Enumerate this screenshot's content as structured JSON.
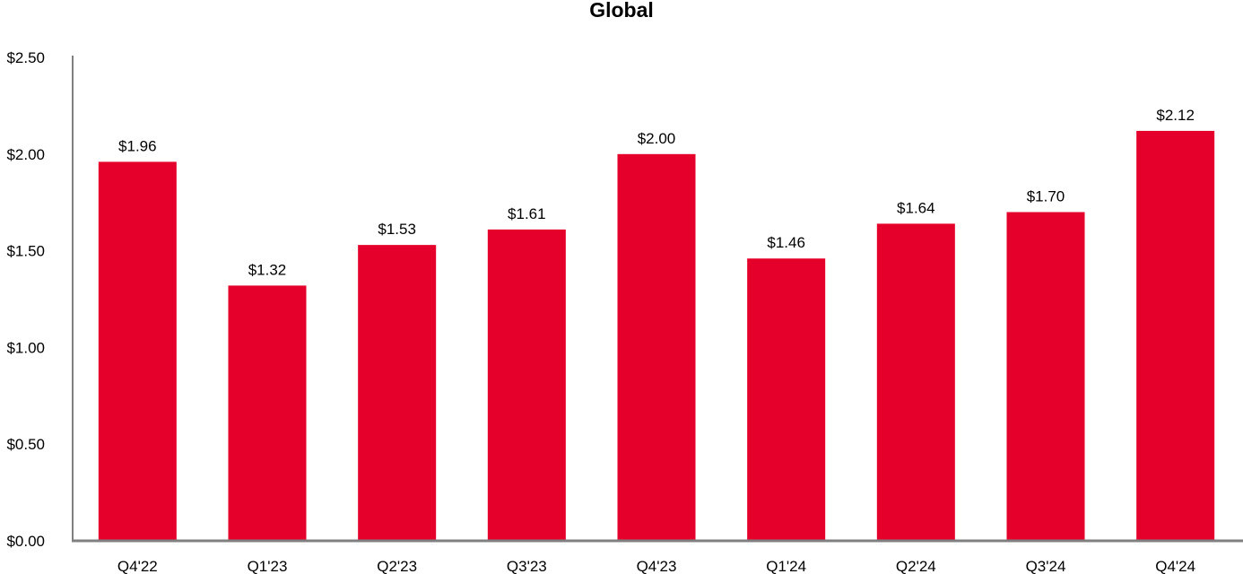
{
  "chart_data": {
    "type": "bar",
    "title": "Global",
    "xlabel": "",
    "ylabel": "",
    "categories": [
      "Q4'22",
      "Q1'23",
      "Q2'23",
      "Q3'23",
      "Q4'23",
      "Q1'24",
      "Q2'24",
      "Q3'24",
      "Q4'24"
    ],
    "values": [
      1.96,
      1.32,
      1.53,
      1.61,
      2.0,
      1.46,
      1.64,
      1.7,
      2.12
    ],
    "value_labels": [
      "$1.96",
      "$1.32",
      "$1.53",
      "$1.61",
      "$2.00",
      "$1.46",
      "$1.64",
      "$1.70",
      "$2.12"
    ],
    "ylim": [
      0,
      2.5
    ],
    "yticks": [
      0,
      0.5,
      1.0,
      1.5,
      2.0,
      2.5
    ],
    "ytick_labels": [
      "$0.00",
      "$0.50",
      "$1.00",
      "$1.50",
      "$2.00",
      "$2.50"
    ],
    "grid": false,
    "legend": "none",
    "colors": {
      "bar": "#e4002b",
      "axis": "#808080",
      "text": "#000000"
    }
  }
}
